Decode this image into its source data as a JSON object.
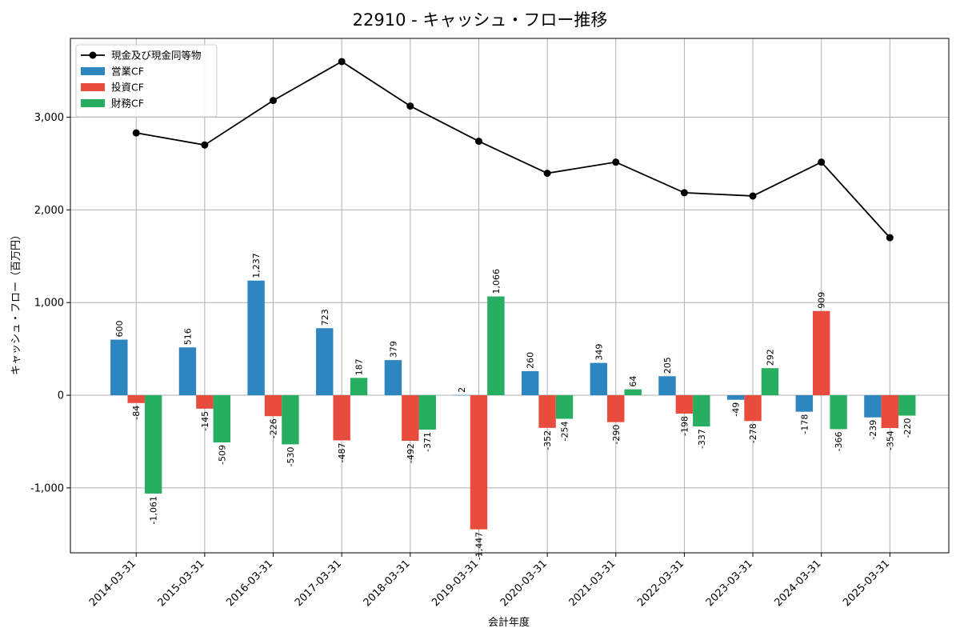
{
  "chart_data": {
    "type": "bar",
    "title": "22910 - キャッシュ・フロー推移",
    "xlabel": "会計年度",
    "ylabel": "キャッシュ・フロー（百万円）",
    "ylim": [
      -1700,
      3850
    ],
    "yticks": [
      -1000,
      0,
      1000,
      2000,
      3000
    ],
    "ytick_labels": [
      "-1,000",
      "0",
      "1,000",
      "2,000",
      "3,000"
    ],
    "grid": true,
    "legend_position": "top-left",
    "categories": [
      "2014-03-31",
      "2015-03-31",
      "2016-03-31",
      "2017-03-31",
      "2018-03-31",
      "2019-03-31",
      "2020-03-31",
      "2021-03-31",
      "2022-03-31",
      "2023-03-31",
      "2024-03-31",
      "2025-03-31"
    ],
    "series": [
      {
        "name": "営業CF",
        "type": "bar",
        "color": "#2e86c1",
        "values": [
          600,
          516,
          1237,
          723,
          379,
          2,
          260,
          349,
          205,
          -49,
          -178,
          -239
        ],
        "labels": [
          "600",
          "516",
          "1,237",
          "723",
          "379",
          "2",
          "260",
          "349",
          "205",
          "-49",
          "-178",
          "-239"
        ]
      },
      {
        "name": "投資CF",
        "type": "bar",
        "color": "#e74c3c",
        "values": [
          -84,
          -145,
          -226,
          -487,
          -492,
          -1447,
          -352,
          -290,
          -198,
          -278,
          909,
          -354
        ],
        "labels": [
          "-84",
          "-145",
          "-226",
          "-487",
          "-492",
          "-1,447",
          "-352",
          "-290",
          "-198",
          "-278",
          "909",
          "-354"
        ]
      },
      {
        "name": "財務CF",
        "type": "bar",
        "color": "#27ae60",
        "values": [
          -1061,
          -509,
          -530,
          187,
          -371,
          1066,
          -254,
          64,
          -337,
          292,
          -366,
          -220
        ],
        "labels": [
          "-1,061",
          "-509",
          "-530",
          "187",
          "-371",
          "1,066",
          "-254",
          "64",
          "-337",
          "292",
          "-366",
          "-220"
        ]
      },
      {
        "name": "現金及び現金同等物",
        "type": "line",
        "color": "#000000",
        "values": [
          2830,
          2700,
          3180,
          3600,
          3120,
          2740,
          2395,
          2515,
          2185,
          2150,
          2515,
          1700
        ]
      }
    ]
  }
}
